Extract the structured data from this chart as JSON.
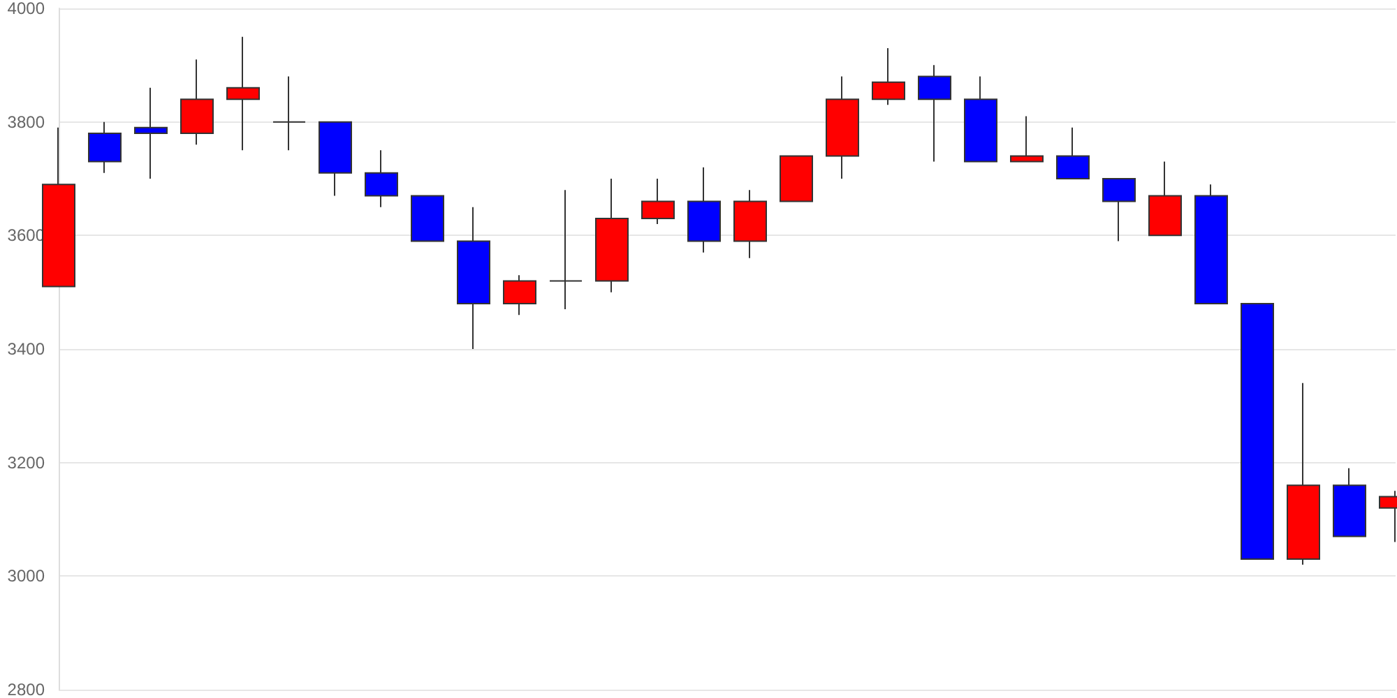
{
  "chart_data": {
    "type": "candlestick",
    "categories": [
      null,
      null,
      null,
      null,
      null,
      null,
      null,
      null,
      null,
      null,
      null,
      null,
      null,
      null,
      null,
      null,
      null,
      null,
      null,
      null,
      null,
      null,
      null,
      null,
      null,
      null,
      null,
      null,
      null,
      null
    ],
    "ohlc": [
      [
        3510,
        3790,
        3510,
        3690
      ],
      [
        3780,
        3800,
        3710,
        3730
      ],
      [
        3790,
        3860,
        3700,
        3780
      ],
      [
        3780,
        3910,
        3760,
        3840
      ],
      [
        3840,
        3950,
        3750,
        3860
      ],
      [
        3800,
        3880,
        3750,
        3800
      ],
      [
        3800,
        3800,
        3670,
        3710
      ],
      [
        3710,
        3750,
        3650,
        3670
      ],
      [
        3670,
        3670,
        3590,
        3590
      ],
      [
        3590,
        3650,
        3400,
        3480
      ],
      [
        3480,
        3530,
        3460,
        3520
      ],
      [
        3520,
        3680,
        3470,
        3520
      ],
      [
        3520,
        3700,
        3500,
        3630
      ],
      [
        3630,
        3700,
        3620,
        3660
      ],
      [
        3660,
        3720,
        3570,
        3590
      ],
      [
        3590,
        3680,
        3560,
        3660
      ],
      [
        3660,
        3740,
        3660,
        3740
      ],
      [
        3740,
        3880,
        3700,
        3840
      ],
      [
        3840,
        3930,
        3830,
        3870
      ],
      [
        3880,
        3900,
        3730,
        3840
      ],
      [
        3840,
        3880,
        3730,
        3730
      ],
      [
        3730,
        3810,
        3730,
        3740
      ],
      [
        3740,
        3790,
        3700,
        3700
      ],
      [
        3700,
        3700,
        3590,
        3660
      ],
      [
        3600,
        3730,
        3600,
        3670
      ],
      [
        3670,
        3690,
        3480,
        3480
      ],
      [
        3480,
        3480,
        3030,
        3030
      ],
      [
        3030,
        3340,
        3020,
        3160
      ],
      [
        3160,
        3190,
        3070,
        3070
      ],
      [
        3120,
        3150,
        3060,
        3140
      ]
    ],
    "colors": [
      "#ff0000",
      "#0000ff",
      "#0000ff",
      "#ff0000",
      "#ff0000",
      "#333333",
      "#0000ff",
      "#0000ff",
      "#0000ff",
      "#0000ff",
      "#ff0000",
      "#333333",
      "#ff0000",
      "#ff0000",
      "#0000ff",
      "#ff0000",
      "#ff0000",
      "#ff0000",
      "#ff0000",
      "#0000ff",
      "#0000ff",
      "#ff0000",
      "#0000ff",
      "#0000ff",
      "#ff0000",
      "#0000ff",
      "#0000ff",
      "#ff0000",
      "#0000ff",
      "#ff0000"
    ],
    "ylim": [
      2800,
      4000
    ],
    "yticks": [
      2800,
      3000,
      3200,
      3400,
      3600,
      3800,
      4000
    ],
    "grid": "y",
    "tick_labels": "y"
  }
}
